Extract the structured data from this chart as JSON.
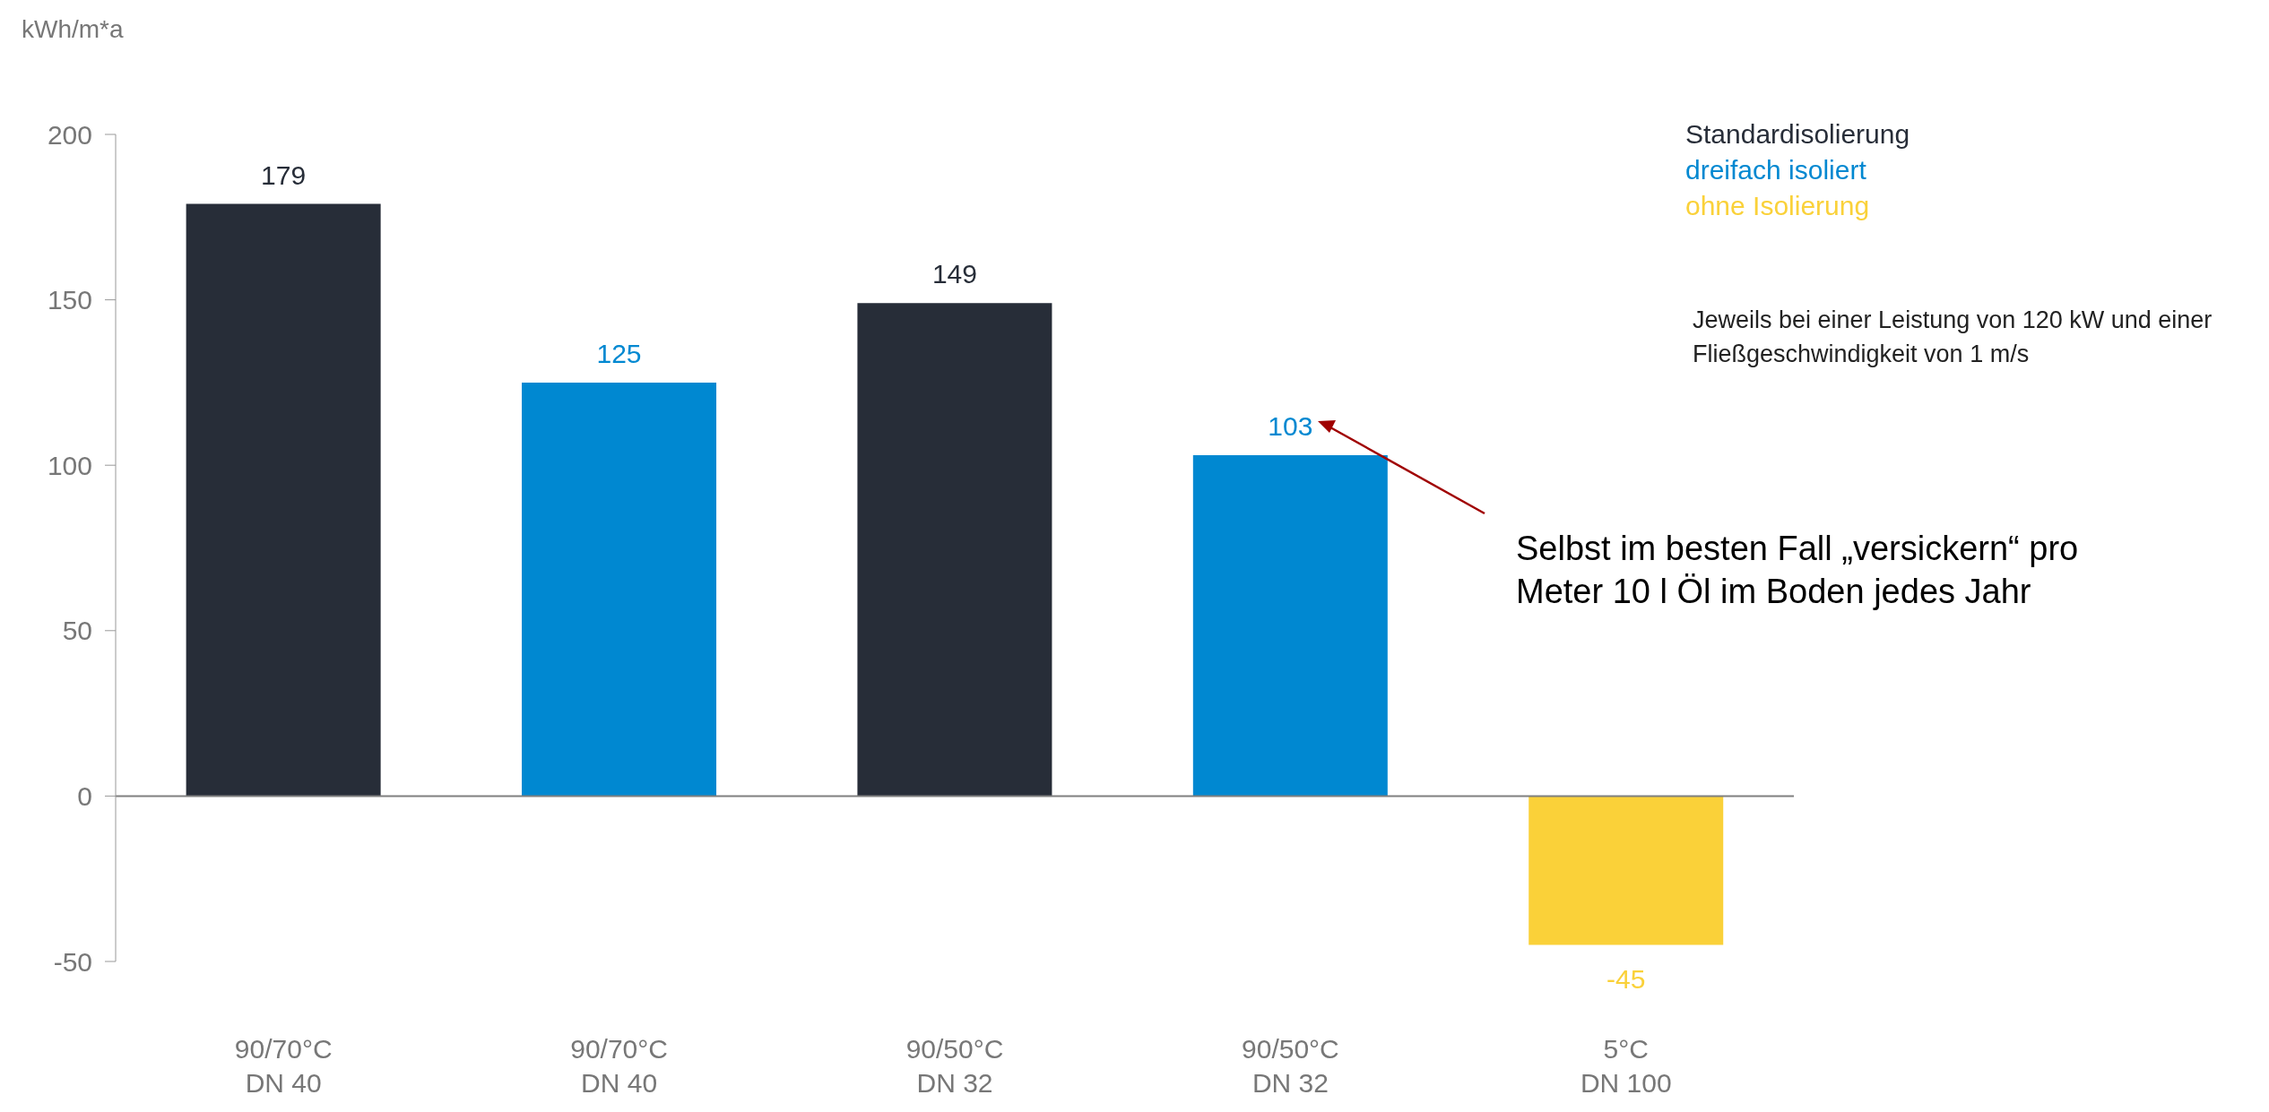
{
  "chart_data": {
    "type": "bar",
    "ylabel": "kWh/m*a",
    "categories": [
      "90/70°C\nDN 40",
      "90/70°C\nDN 40",
      "90/50°C\nDN 32",
      "90/50°C\nDN 32",
      "5°C\nDN 100"
    ],
    "series": [
      {
        "name": "Standardisolierung",
        "color": "#272d38",
        "values": [
          179,
          null,
          149,
          null,
          null
        ]
      },
      {
        "name": "dreifach isoliert",
        "color": "#0088d1",
        "values": [
          null,
          125,
          null,
          103,
          null
        ]
      },
      {
        "name": "ohne Isolierung",
        "color": "#fad139",
        "values": [
          null,
          null,
          null,
          null,
          -45
        ]
      }
    ],
    "ylim": [
      -50,
      200
    ],
    "yticks": [
      -50,
      0,
      50,
      100,
      150,
      200
    ],
    "grid": false,
    "legend": "top right",
    "data_labels": true,
    "ref_lines": [
      {
        "axis": "y",
        "value": 0,
        "color": "#7f7f7f"
      }
    ],
    "annotations": [
      "Jeweils bei einer Leistung von 120 kW und einer Fließgeschwindigkeit von 1 m/s",
      "Selbst im besten Fall „versickern“ pro Meter 10 l Öl im Boden jedes Jahr"
    ]
  }
}
